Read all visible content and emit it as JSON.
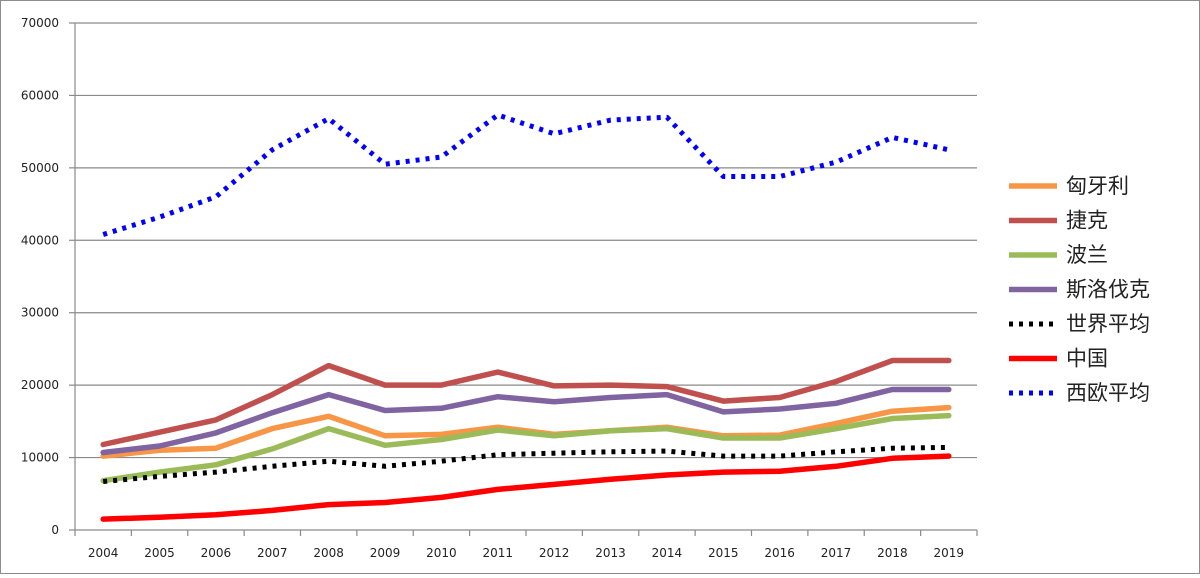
{
  "chart_data": {
    "type": "line",
    "title": "",
    "xlabel": "",
    "ylabel": "",
    "ylim": [
      0,
      70000
    ],
    "yticks": [
      0,
      10000,
      20000,
      30000,
      40000,
      50000,
      60000,
      70000
    ],
    "grid": true,
    "legend_position": "right",
    "categories": [
      "2004",
      "2005",
      "2006",
      "2007",
      "2008",
      "2009",
      "2010",
      "2011",
      "2012",
      "2013",
      "2014",
      "2015",
      "2016",
      "2017",
      "2018",
      "2019"
    ],
    "series": [
      {
        "name": "匈牙利",
        "color": "#f79646",
        "dash": "solid",
        "values": [
          10200,
          11000,
          11300,
          14000,
          15700,
          13000,
          13200,
          14200,
          13200,
          13700,
          14200,
          13000,
          13100,
          14700,
          16400,
          16900
        ]
      },
      {
        "name": "捷克",
        "color": "#c0504d",
        "dash": "solid",
        "values": [
          11800,
          13500,
          15200,
          18700,
          22700,
          20000,
          20000,
          21800,
          19900,
          20000,
          19800,
          17800,
          18300,
          20500,
          23400,
          23400
        ]
      },
      {
        "name": "波兰",
        "color": "#9bbb59",
        "dash": "solid",
        "values": [
          6800,
          8000,
          9000,
          11200,
          14000,
          11700,
          12500,
          13800,
          13000,
          13700,
          14000,
          12700,
          12700,
          14000,
          15400,
          15800
        ]
      },
      {
        "name": "斯洛伐克",
        "color": "#8064a2",
        "dash": "solid",
        "values": [
          10700,
          11600,
          13400,
          16200,
          18700,
          16500,
          16800,
          18400,
          17700,
          18300,
          18700,
          16300,
          16700,
          17500,
          19400,
          19400
        ]
      },
      {
        "name": "世界平均",
        "color": "#000000",
        "dash": "dotted",
        "values": [
          6700,
          7400,
          8000,
          8800,
          9500,
          8800,
          9500,
          10400,
          10600,
          10800,
          10900,
          10200,
          10200,
          10800,
          11300,
          11400
        ]
      },
      {
        "name": "中国",
        "color": "#ff0000",
        "dash": "solid",
        "values": [
          1500,
          1750,
          2100,
          2700,
          3500,
          3800,
          4500,
          5600,
          6300,
          7000,
          7600,
          8000,
          8100,
          8800,
          9900,
          10200
        ]
      },
      {
        "name": "西欧平均",
        "color": "#0000ff",
        "dash": "dotted",
        "values": [
          40800,
          43200,
          46000,
          52500,
          56800,
          50500,
          51500,
          57300,
          54700,
          56600,
          57000,
          48800,
          48800,
          50800,
          54200,
          52500
        ]
      }
    ]
  }
}
